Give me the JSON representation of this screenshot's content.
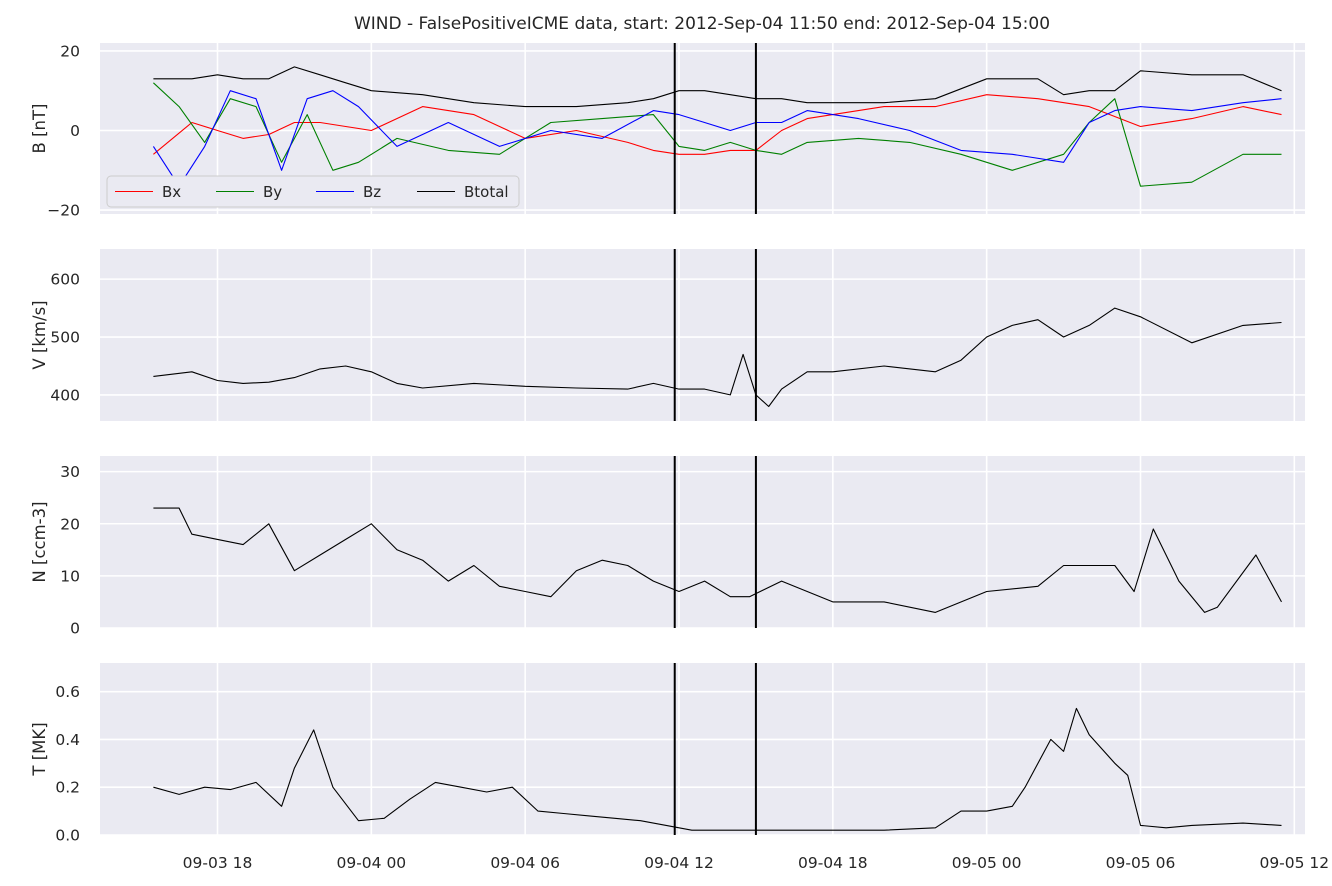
{
  "chart_data": {
    "type": "line",
    "title": "WIND - FalsePositiveICME data, start: 2012-Sep-04 11:50  end: 2012-Sep-04 15:00",
    "xlim": [
      "2012-09-03 13:25",
      "2012-09-05 12:25"
    ],
    "x_ticks": [
      "09-03 18",
      "09-04 00",
      "09-04 06",
      "09-04 12",
      "09-04 18",
      "09-05 00",
      "09-05 06",
      "09-05 12"
    ],
    "x_tick_times": [
      "2012-09-03 18:00",
      "2012-09-04 00:00",
      "2012-09-04 06:00",
      "2012-09-04 12:00",
      "2012-09-04 18:00",
      "2012-09-05 00:00",
      "2012-09-05 06:00",
      "2012-09-05 12:00"
    ],
    "event_markers": [
      "2012-09-04 11:50",
      "2012-09-04 15:00"
    ],
    "grid": true,
    "panels": [
      {
        "name": "B",
        "ylabel": "B [nT]",
        "ylim": [
          -21,
          22
        ],
        "yticks": [
          -20,
          0,
          20
        ],
        "ytick_labels": [
          "−20",
          "0",
          "20"
        ],
        "legend": {
          "placement": "lower-left",
          "entries": [
            "Bx",
            "By",
            "Bz",
            "Btotal"
          ]
        },
        "series": [
          {
            "name": "Bx",
            "color": "#ff0000",
            "x": [
              "2012-09-03 15:30",
              "2012-09-03 17:00",
              "2012-09-03 18:00",
              "2012-09-03 19:00",
              "2012-09-03 20:00",
              "2012-09-03 21:00",
              "2012-09-03 22:00",
              "2012-09-03 23:00",
              "2012-09-04 00:00",
              "2012-09-04 02:00",
              "2012-09-04 04:00",
              "2012-09-04 06:00",
              "2012-09-04 08:00",
              "2012-09-04 10:00",
              "2012-09-04 11:00",
              "2012-09-04 12:00",
              "2012-09-04 13:00",
              "2012-09-04 14:00",
              "2012-09-04 15:00",
              "2012-09-04 16:00",
              "2012-09-04 17:00",
              "2012-09-04 18:00",
              "2012-09-04 20:00",
              "2012-09-04 22:00",
              "2012-09-05 00:00",
              "2012-09-05 02:00",
              "2012-09-05 04:00",
              "2012-09-05 06:00",
              "2012-09-05 08:00",
              "2012-09-05 10:00",
              "2012-09-05 11:30"
            ],
            "y": [
              -6,
              2,
              0,
              -2,
              -1,
              2,
              2,
              1,
              0,
              6,
              4,
              -2,
              0,
              -3,
              -5,
              -6,
              -6,
              -5,
              -5,
              0,
              3,
              4,
              6,
              6,
              9,
              8,
              6,
              1,
              3,
              6,
              4
            ]
          },
          {
            "name": "By",
            "color": "#008000",
            "x": [
              "2012-09-03 15:30",
              "2012-09-03 16:30",
              "2012-09-03 17:30",
              "2012-09-03 18:30",
              "2012-09-03 19:30",
              "2012-09-03 20:30",
              "2012-09-03 21:30",
              "2012-09-03 22:30",
              "2012-09-03 23:30",
              "2012-09-04 01:00",
              "2012-09-04 03:00",
              "2012-09-04 05:00",
              "2012-09-04 07:00",
              "2012-09-04 09:00",
              "2012-09-04 11:00",
              "2012-09-04 12:00",
              "2012-09-04 13:00",
              "2012-09-04 14:00",
              "2012-09-04 15:00",
              "2012-09-04 16:00",
              "2012-09-04 17:00",
              "2012-09-04 19:00",
              "2012-09-04 21:00",
              "2012-09-04 23:00",
              "2012-09-05 01:00",
              "2012-09-05 03:00",
              "2012-09-05 04:00",
              "2012-09-05 05:00",
              "2012-09-05 06:00",
              "2012-09-05 08:00",
              "2012-09-05 10:00",
              "2012-09-05 11:30"
            ],
            "y": [
              12,
              6,
              -3,
              8,
              6,
              -8,
              4,
              -10,
              -8,
              -2,
              -5,
              -6,
              2,
              3,
              4,
              -4,
              -5,
              -3,
              -5,
              -6,
              -3,
              -2,
              -3,
              -6,
              -10,
              -6,
              2,
              8,
              -14,
              -13,
              -6,
              -6
            ]
          },
          {
            "name": "Bz",
            "color": "#0000ff",
            "x": [
              "2012-09-03 15:30",
              "2012-09-03 16:30",
              "2012-09-03 17:30",
              "2012-09-03 18:30",
              "2012-09-03 19:30",
              "2012-09-03 20:30",
              "2012-09-03 21:30",
              "2012-09-03 22:30",
              "2012-09-03 23:30",
              "2012-09-04 01:00",
              "2012-09-04 03:00",
              "2012-09-04 05:00",
              "2012-09-04 07:00",
              "2012-09-04 09:00",
              "2012-09-04 11:00",
              "2012-09-04 12:00",
              "2012-09-04 13:00",
              "2012-09-04 14:00",
              "2012-09-04 15:00",
              "2012-09-04 16:00",
              "2012-09-04 17:00",
              "2012-09-04 19:00",
              "2012-09-04 21:00",
              "2012-09-04 23:00",
              "2012-09-05 01:00",
              "2012-09-05 03:00",
              "2012-09-05 04:00",
              "2012-09-05 05:00",
              "2012-09-05 06:00",
              "2012-09-05 08:00",
              "2012-09-05 10:00",
              "2012-09-05 11:30"
            ],
            "y": [
              -4,
              -14,
              -4,
              10,
              8,
              -10,
              8,
              10,
              6,
              -4,
              2,
              -4,
              0,
              -2,
              5,
              4,
              2,
              0,
              2,
              2,
              5,
              3,
              0,
              -5,
              -6,
              -8,
              2,
              5,
              6,
              5,
              7,
              8
            ]
          },
          {
            "name": "Btotal",
            "color": "#000000",
            "x": [
              "2012-09-03 15:30",
              "2012-09-03 17:00",
              "2012-09-03 18:00",
              "2012-09-03 19:00",
              "2012-09-03 20:00",
              "2012-09-03 21:00",
              "2012-09-03 22:00",
              "2012-09-03 23:00",
              "2012-09-04 00:00",
              "2012-09-04 02:00",
              "2012-09-04 04:00",
              "2012-09-04 06:00",
              "2012-09-04 08:00",
              "2012-09-04 10:00",
              "2012-09-04 11:00",
              "2012-09-04 12:00",
              "2012-09-04 13:00",
              "2012-09-04 14:00",
              "2012-09-04 15:00",
              "2012-09-04 16:00",
              "2012-09-04 17:00",
              "2012-09-04 18:00",
              "2012-09-04 20:00",
              "2012-09-04 22:00",
              "2012-09-05 00:00",
              "2012-09-05 02:00",
              "2012-09-05 03:00",
              "2012-09-05 04:00",
              "2012-09-05 05:00",
              "2012-09-05 06:00",
              "2012-09-05 08:00",
              "2012-09-05 10:00",
              "2012-09-05 11:30"
            ],
            "y": [
              13,
              13,
              14,
              13,
              13,
              16,
              14,
              12,
              10,
              9,
              7,
              6,
              6,
              7,
              8,
              10,
              10,
              9,
              8,
              8,
              7,
              7,
              7,
              8,
              13,
              13,
              9,
              10,
              10,
              15,
              14,
              14,
              10
            ]
          }
        ]
      },
      {
        "name": "V",
        "ylabel": "V [km/s]",
        "ylim": [
          355,
          652
        ],
        "yticks": [
          400,
          500,
          600
        ],
        "ytick_labels": [
          "400",
          "500",
          "600"
        ],
        "series": [
          {
            "name": "",
            "color": "#000000",
            "x": [
              "2012-09-03 15:30",
              "2012-09-03 17:00",
              "2012-09-03 18:00",
              "2012-09-03 19:00",
              "2012-09-03 20:00",
              "2012-09-03 21:00",
              "2012-09-03 22:00",
              "2012-09-03 23:00",
              "2012-09-04 00:00",
              "2012-09-04 01:00",
              "2012-09-04 02:00",
              "2012-09-04 04:00",
              "2012-09-04 06:00",
              "2012-09-04 08:00",
              "2012-09-04 10:00",
              "2012-09-04 11:00",
              "2012-09-04 12:00",
              "2012-09-04 13:00",
              "2012-09-04 14:00",
              "2012-09-04 14:30",
              "2012-09-04 15:00",
              "2012-09-04 15:30",
              "2012-09-04 16:00",
              "2012-09-04 17:00",
              "2012-09-04 18:00",
              "2012-09-04 20:00",
              "2012-09-04 22:00",
              "2012-09-04 23:00",
              "2012-09-05 00:00",
              "2012-09-05 01:00",
              "2012-09-05 02:00",
              "2012-09-05 03:00",
              "2012-09-05 04:00",
              "2012-09-05 05:00",
              "2012-09-05 06:00",
              "2012-09-05 08:00",
              "2012-09-05 10:00",
              "2012-09-05 11:30"
            ],
            "y": [
              432,
              440,
              425,
              420,
              422,
              430,
              445,
              450,
              440,
              420,
              412,
              420,
              415,
              412,
              410,
              420,
              410,
              410,
              400,
              470,
              400,
              380,
              410,
              440,
              440,
              450,
              440,
              460,
              500,
              520,
              530,
              500,
              520,
              550,
              535,
              490,
              520,
              525
            ]
          }
        ]
      },
      {
        "name": "N",
        "ylabel": "N [ccm-3]",
        "ylim": [
          0,
          33
        ],
        "yticks": [
          0,
          10,
          20,
          30
        ],
        "ytick_labels": [
          "0",
          "10",
          "20",
          "30"
        ],
        "series": [
          {
            "name": "",
            "color": "#000000",
            "x": [
              "2012-09-03 15:30",
              "2012-09-03 16:30",
              "2012-09-03 17:00",
              "2012-09-03 18:00",
              "2012-09-03 19:00",
              "2012-09-03 20:00",
              "2012-09-03 21:00",
              "2012-09-03 22:00",
              "2012-09-03 23:00",
              "2012-09-04 00:00",
              "2012-09-04 01:00",
              "2012-09-04 02:00",
              "2012-09-04 03:00",
              "2012-09-04 04:00",
              "2012-09-04 05:00",
              "2012-09-04 06:00",
              "2012-09-04 07:00",
              "2012-09-04 08:00",
              "2012-09-04 09:00",
              "2012-09-04 10:00",
              "2012-09-04 11:00",
              "2012-09-04 12:00",
              "2012-09-04 13:00",
              "2012-09-04 14:00",
              "2012-09-04 14:45",
              "2012-09-04 16:00",
              "2012-09-04 17:00",
              "2012-09-04 18:00",
              "2012-09-04 20:00",
              "2012-09-04 22:00",
              "2012-09-05 00:00",
              "2012-09-05 02:00",
              "2012-09-05 03:00",
              "2012-09-05 04:00",
              "2012-09-05 05:00",
              "2012-09-05 05:45",
              "2012-09-05 06:30",
              "2012-09-05 07:30",
              "2012-09-05 08:30",
              "2012-09-05 09:00",
              "2012-09-05 10:30",
              "2012-09-05 11:30"
            ],
            "y": [
              23,
              23,
              18,
              17,
              16,
              20,
              11,
              14,
              17,
              20,
              15,
              13,
              9,
              12,
              8,
              7,
              6,
              11,
              13,
              12,
              9,
              7,
              9,
              6,
              6,
              9,
              7,
              5,
              5,
              3,
              7,
              8,
              12,
              12,
              12,
              7,
              19,
              9,
              3,
              4,
              14,
              5
            ]
          }
        ]
      },
      {
        "name": "T",
        "ylabel": "T [MK]",
        "ylim": [
          0,
          0.72
        ],
        "yticks": [
          0.0,
          0.2,
          0.4,
          0.6
        ],
        "ytick_labels": [
          "0.0",
          "0.2",
          "0.4",
          "0.6"
        ],
        "series": [
          {
            "name": "",
            "color": "#000000",
            "x": [
              "2012-09-03 15:30",
              "2012-09-03 16:30",
              "2012-09-03 17:30",
              "2012-09-03 18:30",
              "2012-09-03 19:30",
              "2012-09-03 20:30",
              "2012-09-03 21:00",
              "2012-09-03 21:45",
              "2012-09-03 22:30",
              "2012-09-03 23:30",
              "2012-09-04 00:30",
              "2012-09-04 01:30",
              "2012-09-04 02:30",
              "2012-09-04 03:30",
              "2012-09-04 04:30",
              "2012-09-04 05:30",
              "2012-09-04 06:30",
              "2012-09-04 07:30",
              "2012-09-04 08:30",
              "2012-09-04 09:30",
              "2012-09-04 10:30",
              "2012-09-04 11:30",
              "2012-09-04 12:30",
              "2012-09-04 14:00",
              "2012-09-04 16:00",
              "2012-09-04 18:00",
              "2012-09-04 20:00",
              "2012-09-04 22:00",
              "2012-09-04 23:00",
              "2012-09-05 00:00",
              "2012-09-05 01:00",
              "2012-09-05 01:30",
              "2012-09-05 02:30",
              "2012-09-05 03:00",
              "2012-09-05 03:30",
              "2012-09-05 04:00",
              "2012-09-05 05:00",
              "2012-09-05 05:30",
              "2012-09-05 06:00",
              "2012-09-05 07:00",
              "2012-09-05 08:00",
              "2012-09-05 10:00",
              "2012-09-05 11:30"
            ],
            "y": [
              0.2,
              0.17,
              0.2,
              0.19,
              0.22,
              0.12,
              0.28,
              0.44,
              0.2,
              0.06,
              0.07,
              0.15,
              0.22,
              0.2,
              0.18,
              0.2,
              0.1,
              0.09,
              0.08,
              0.07,
              0.06,
              0.04,
              0.02,
              0.02,
              0.02,
              0.02,
              0.02,
              0.03,
              0.1,
              0.1,
              0.12,
              0.2,
              0.4,
              0.35,
              0.53,
              0.42,
              0.3,
              0.25,
              0.04,
              0.03,
              0.04,
              0.05,
              0.04
            ]
          }
        ]
      }
    ]
  }
}
